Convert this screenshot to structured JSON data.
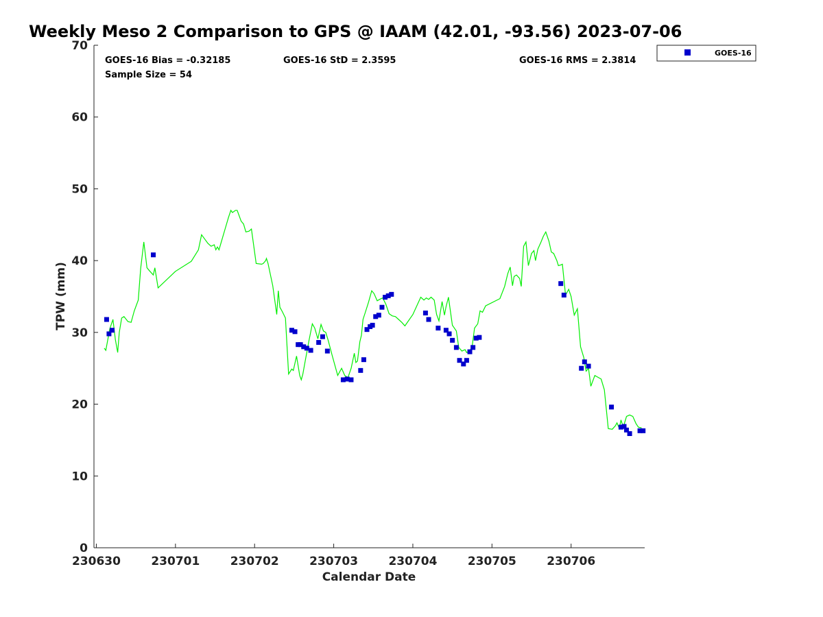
{
  "chart_data": {
    "type": "line",
    "title": "Weekly Meso 2 Comparison to GPS @ IAAM (42.01, -93.56) 2023-07-06",
    "xlabel": "Calendar Date",
    "ylabel": "TPW (mm)",
    "ylim": [
      0,
      70
    ],
    "yticks": [
      "0",
      "10",
      "20",
      "30",
      "40",
      "50",
      "60",
      "70"
    ],
    "xlim": [
      -0.03,
      6.93
    ],
    "xticks": [
      {
        "value": 0,
        "label": "230630"
      },
      {
        "value": 1,
        "label": "230701"
      },
      {
        "value": 2,
        "label": "230702"
      },
      {
        "value": 3,
        "label": "230703"
      },
      {
        "value": 4,
        "label": "230704"
      },
      {
        "value": 5,
        "label": "230705"
      },
      {
        "value": 6,
        "label": "230706"
      }
    ],
    "grid": false,
    "legend_position": "top-right-outside",
    "stats": {
      "bias": "GOES-16 Bias = -0.32185",
      "std": "GOES-16 StD = 2.3595",
      "rms": "GOES-16 RMS = 2.3814",
      "sample": "Sample Size = 54"
    },
    "series": [
      {
        "kind": "line",
        "color": "#00ee00",
        "x": [
          0.1,
          0.12,
          0.17,
          0.21,
          0.24,
          0.27,
          0.29,
          0.32,
          0.35,
          0.4,
          0.44,
          0.48,
          0.53,
          0.56,
          0.6,
          0.64,
          0.67,
          0.72,
          0.74,
          0.78,
          1.0,
          1.2,
          1.29,
          1.33,
          1.37,
          1.41,
          1.45,
          1.49,
          1.51,
          1.53,
          1.55,
          1.59,
          1.63,
          1.67,
          1.7,
          1.72,
          1.76,
          1.78,
          1.8,
          1.83,
          1.86,
          1.89,
          1.93,
          1.96,
          2.02,
          2.09,
          2.11,
          2.14,
          2.15,
          2.17,
          2.23,
          2.28,
          2.3,
          2.32,
          2.35,
          2.39,
          2.43,
          2.47,
          2.49,
          2.53,
          2.57,
          2.59,
          2.61,
          2.64,
          2.69,
          2.73,
          2.76,
          2.8,
          2.84,
          2.87,
          2.9,
          2.93,
          2.98,
          3.05,
          3.1,
          3.14,
          3.18,
          3.22,
          3.26,
          3.28,
          3.3,
          3.33,
          3.35,
          3.37,
          3.4,
          3.44,
          3.48,
          3.51,
          3.55,
          3.58,
          3.62,
          3.66,
          3.7,
          3.74,
          3.78,
          3.82,
          3.86,
          3.9,
          4.0,
          4.1,
          4.14,
          4.17,
          4.2,
          4.23,
          4.27,
          4.3,
          4.33,
          4.37,
          4.4,
          4.42,
          4.45,
          4.5,
          4.55,
          4.58,
          4.62,
          4.66,
          4.68,
          4.72,
          4.75,
          4.78,
          4.82,
          4.85,
          4.88,
          4.92,
          5.1,
          5.16,
          5.2,
          5.23,
          5.26,
          5.28,
          5.31,
          5.35,
          5.37,
          5.4,
          5.43,
          5.46,
          5.5,
          5.53,
          5.55,
          5.58,
          5.62,
          5.65,
          5.68,
          5.72,
          5.75,
          5.78,
          5.82,
          5.84,
          5.87,
          5.89,
          5.93,
          5.97,
          6.0,
          6.04,
          6.08,
          6.12,
          6.16,
          6.19,
          6.22,
          6.25,
          6.3,
          6.38,
          6.42,
          6.47,
          6.52,
          6.56,
          6.58,
          6.61,
          6.63,
          6.66,
          6.7,
          6.74,
          6.78,
          6.82,
          6.85,
          6.89
        ],
        "y": [
          27.8,
          27.5,
          30.5,
          31.8,
          29.0,
          27.2,
          30.0,
          32.0,
          32.2,
          31.5,
          31.4,
          33.0,
          34.5,
          38.9,
          42.6,
          39.0,
          38.6,
          38.0,
          39.0,
          36.2,
          38.5,
          39.9,
          41.5,
          43.6,
          43.0,
          42.4,
          42.0,
          42.2,
          41.5,
          41.9,
          41.5,
          43.0,
          44.5,
          46.0,
          47.0,
          46.7,
          47.0,
          47.0,
          46.4,
          45.5,
          45.1,
          44.0,
          44.1,
          44.4,
          39.6,
          39.5,
          39.6,
          40.0,
          40.3,
          39.6,
          36.5,
          32.5,
          35.8,
          33.5,
          32.9,
          32.0,
          24.2,
          24.9,
          24.7,
          26.7,
          24.0,
          23.4,
          24.2,
          26.0,
          29.0,
          31.2,
          30.6,
          29.1,
          31.1,
          30.2,
          30.0,
          28.9,
          26.8,
          24.0,
          25.0,
          24.0,
          23.7,
          25.0,
          27.1,
          25.8,
          26.0,
          28.7,
          29.6,
          31.8,
          32.8,
          34.2,
          35.8,
          35.4,
          34.4,
          34.6,
          34.8,
          33.9,
          32.6,
          32.3,
          32.2,
          31.8,
          31.4,
          30.9,
          32.5,
          34.9,
          34.5,
          34.8,
          34.6,
          34.9,
          34.5,
          32.5,
          31.6,
          34.3,
          32.4,
          33.6,
          34.9,
          31.0,
          30.2,
          27.9,
          27.4,
          27.6,
          27.2,
          27.4,
          28.1,
          30.6,
          31.2,
          33.0,
          32.8,
          33.7,
          34.7,
          36.4,
          38.2,
          39.1,
          36.5,
          37.8,
          38.0,
          37.5,
          36.4,
          42.0,
          42.6,
          39.3,
          41.0,
          41.4,
          40.0,
          41.6,
          42.6,
          43.4,
          44.0,
          42.7,
          41.2,
          41.0,
          40.0,
          39.3,
          39.4,
          39.5,
          35.2,
          36.0,
          35.0,
          32.4,
          33.3,
          28.0,
          26.5,
          24.6,
          25.0,
          22.5,
          24.0,
          23.5,
          22.0,
          16.6,
          16.5,
          17.0,
          17.4,
          16.6,
          17.8,
          16.8,
          18.3,
          18.5,
          18.3,
          17.3,
          16.8,
          16.7
        ]
      },
      {
        "name": "GOES-16",
        "kind": "scatter",
        "color": "#0000cc",
        "x": [
          0.13,
          0.16,
          0.2,
          0.72,
          2.47,
          2.51,
          2.55,
          2.58,
          2.62,
          2.66,
          2.71,
          2.81,
          2.86,
          2.92,
          3.12,
          3.17,
          3.22,
          3.34,
          3.38,
          3.42,
          3.46,
          3.49,
          3.53,
          3.57,
          3.61,
          3.65,
          3.69,
          3.73,
          4.16,
          4.2,
          4.32,
          4.42,
          4.46,
          4.5,
          4.55,
          4.59,
          4.64,
          4.68,
          4.72,
          4.76,
          4.8,
          4.84,
          5.87,
          5.91,
          6.13,
          6.17,
          6.22,
          6.51,
          6.63,
          6.67,
          6.7,
          6.74,
          6.87,
          6.91
        ],
        "y": [
          31.8,
          29.8,
          30.3,
          40.8,
          30.3,
          30.1,
          28.3,
          28.3,
          28.0,
          27.8,
          27.5,
          28.6,
          29.4,
          27.4,
          23.4,
          23.5,
          23.4,
          24.7,
          26.2,
          30.4,
          30.8,
          31.0,
          32.2,
          32.4,
          33.5,
          34.9,
          35.1,
          35.3,
          32.7,
          31.8,
          30.6,
          30.3,
          29.8,
          28.9,
          27.9,
          26.1,
          25.6,
          26.1,
          27.3,
          27.9,
          29.2,
          29.3,
          36.8,
          35.2,
          25.0,
          25.9,
          25.3,
          19.6,
          16.8,
          16.9,
          16.4,
          15.9,
          16.3,
          16.3
        ]
      }
    ]
  }
}
